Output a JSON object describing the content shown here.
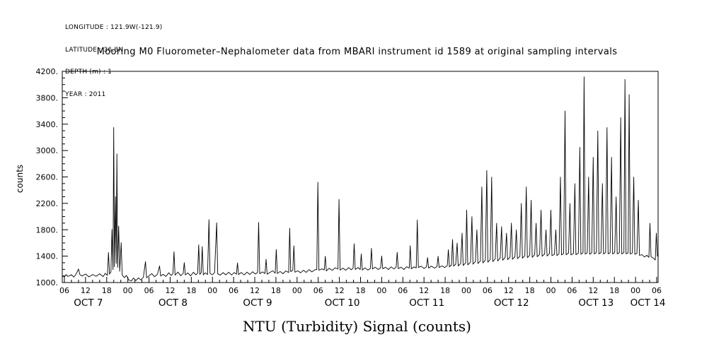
{
  "station": {
    "lines": [
      "LONGITUDE : 121.9W(-121.9)",
      "LATITUDE : 36.8N",
      "DEPTH (m) : 1",
      "YEAR : 2011"
    ]
  },
  "title": "Mooring M0 Fluorometer–Nephalometer data from MBARI instrument id 1589 at original sampling intervals",
  "chart_data": {
    "type": "line",
    "title": "Mooring M0 Fluorometer–Nephalometer data from MBARI instrument id 1589 at original sampling intervals",
    "xlabel": "NTU (Turbidity) Signal (counts)",
    "ylabel": "counts",
    "ylim": [
      1000,
      4200
    ],
    "y_tick_step": 400,
    "y_minor_step": 100,
    "y_ticks": [
      "4200.",
      "3800.",
      "3400.",
      "3000.",
      "2600.",
      "2200.",
      "1800.",
      "1400.",
      "1000."
    ],
    "x_domain": [
      5.4,
      174.4
    ],
    "x_units": "hours since 2011-10-07 00:00",
    "x_tick_hours": [
      6,
      12,
      18,
      24,
      30,
      36,
      42,
      48,
      54,
      60,
      66,
      72,
      78,
      84,
      90,
      96,
      102,
      108,
      114,
      120,
      126,
      132,
      138,
      144,
      150,
      156,
      162,
      168,
      174
    ],
    "x_tick_labels": [
      "06",
      "12",
      "18",
      "00",
      "06",
      "12",
      "18",
      "00",
      "06",
      "12",
      "18",
      "00",
      "06",
      "12",
      "18",
      "00",
      "06",
      "12",
      "18",
      "00",
      "06",
      "12",
      "18",
      "00",
      "06",
      "12",
      "18",
      "00",
      "06"
    ],
    "x_minor_step_hours": 2,
    "date_labels": [
      {
        "label": "OCT 7",
        "hour": 12.8
      },
      {
        "label": "OCT 8",
        "hour": 36.8
      },
      {
        "label": "OCT 9",
        "hour": 60.8
      },
      {
        "label": "OCT 10",
        "hour": 84.8
      },
      {
        "label": "OCT 11",
        "hour": 108.8
      },
      {
        "label": "OCT 12",
        "hour": 132.8
      },
      {
        "label": "OCT 13",
        "hour": 156.8
      },
      {
        "label": "OCT 14",
        "hour": 171.5
      }
    ],
    "grid": false,
    "legend": "none",
    "line_color": "#000000",
    "points": [
      [
        5.5,
        1100
      ],
      [
        6,
        1085
      ],
      [
        6.5,
        1120
      ],
      [
        7,
        1092
      ],
      [
        8,
        1118
      ],
      [
        8.7,
        1082
      ],
      [
        9.4,
        1135
      ],
      [
        10,
        1205
      ],
      [
        10.4,
        1120
      ],
      [
        11,
        1098
      ],
      [
        12,
        1128
      ],
      [
        13,
        1086
      ],
      [
        14,
        1122
      ],
      [
        15,
        1095
      ],
      [
        16,
        1133
      ],
      [
        17,
        1090
      ],
      [
        17.6,
        1140
      ],
      [
        18.2,
        1108
      ],
      [
        18.5,
        1455
      ],
      [
        18.8,
        1128
      ],
      [
        19.2,
        1162
      ],
      [
        19.5,
        1805
      ],
      [
        19.8,
        1195
      ],
      [
        20.0,
        3350
      ],
      [
        20.2,
        1240
      ],
      [
        20.5,
        2300
      ],
      [
        20.7,
        1290
      ],
      [
        20.9,
        2950
      ],
      [
        21.1,
        1230
      ],
      [
        21.4,
        1855
      ],
      [
        21.7,
        1170
      ],
      [
        22.1,
        1605
      ],
      [
        22.4,
        1115
      ],
      [
        23,
        1075
      ],
      [
        23.6,
        1108
      ],
      [
        24.2,
        1042
      ],
      [
        25,
        1022
      ],
      [
        25.6,
        1068
      ],
      [
        26.3,
        1030
      ],
      [
        27,
        1072
      ],
      [
        27.7,
        1038
      ],
      [
        28.4,
        1080
      ],
      [
        29,
        1318
      ],
      [
        29.3,
        1072
      ],
      [
        30,
        1104
      ],
      [
        30.8,
        1135
      ],
      [
        31.6,
        1088
      ],
      [
        32.4,
        1126
      ],
      [
        33,
        1252
      ],
      [
        33.3,
        1098
      ],
      [
        34,
        1124
      ],
      [
        34.8,
        1092
      ],
      [
        35.6,
        1148
      ],
      [
        36.3,
        1106
      ],
      [
        36.8,
        1136
      ],
      [
        37.1,
        1468
      ],
      [
        37.4,
        1112
      ],
      [
        38.2,
        1158
      ],
      [
        39,
        1104
      ],
      [
        39.7,
        1138
      ],
      [
        40,
        1302
      ],
      [
        40.3,
        1116
      ],
      [
        41,
        1146
      ],
      [
        41.8,
        1102
      ],
      [
        42.6,
        1156
      ],
      [
        43.3,
        1118
      ],
      [
        43.8,
        1142
      ],
      [
        44.1,
        1572
      ],
      [
        44.4,
        1124
      ],
      [
        44.8,
        1150
      ],
      [
        45.1,
        1545
      ],
      [
        45.4,
        1118
      ],
      [
        46,
        1148
      ],
      [
        46.6,
        1122
      ],
      [
        47,
        1952
      ],
      [
        47.3,
        1138
      ],
      [
        48,
        1118
      ],
      [
        48.6,
        1152
      ],
      [
        49.2,
        1905
      ],
      [
        49.5,
        1132
      ],
      [
        50.2,
        1112
      ],
      [
        51,
        1150
      ],
      [
        51.8,
        1118
      ],
      [
        52.6,
        1156
      ],
      [
        53.4,
        1114
      ],
      [
        54.2,
        1152
      ],
      [
        54.8,
        1126
      ],
      [
        55.1,
        1298
      ],
      [
        55.4,
        1122
      ],
      [
        56.2,
        1152
      ],
      [
        57,
        1116
      ],
      [
        57.8,
        1158
      ],
      [
        58.6,
        1122
      ],
      [
        59.4,
        1164
      ],
      [
        60.2,
        1128
      ],
      [
        60.8,
        1152
      ],
      [
        61.1,
        1912
      ],
      [
        61.4,
        1134
      ],
      [
        62.2,
        1162
      ],
      [
        62.9,
        1136
      ],
      [
        63.2,
        1352
      ],
      [
        63.5,
        1126
      ],
      [
        64.3,
        1154
      ],
      [
        65.1,
        1178
      ],
      [
        65.8,
        1142
      ],
      [
        66.1,
        1502
      ],
      [
        66.4,
        1136
      ],
      [
        67.2,
        1168
      ],
      [
        68,
        1134
      ],
      [
        68.8,
        1176
      ],
      [
        69.6,
        1152
      ],
      [
        69.9,
        1822
      ],
      [
        70.2,
        1164
      ],
      [
        70.8,
        1188
      ],
      [
        71.1,
        1558
      ],
      [
        71.4,
        1156
      ],
      [
        72.2,
        1178
      ],
      [
        73,
        1148
      ],
      [
        73.8,
        1186
      ],
      [
        74.6,
        1154
      ],
      [
        75.4,
        1196
      ],
      [
        76.2,
        1162
      ],
      [
        77,
        1192
      ],
      [
        77.6,
        1198
      ],
      [
        77.9,
        2520
      ],
      [
        78.2,
        1186
      ],
      [
        79,
        1208
      ],
      [
        79.7,
        1192
      ],
      [
        80,
        1398
      ],
      [
        80.3,
        1176
      ],
      [
        81.1,
        1216
      ],
      [
        82,
        1184
      ],
      [
        82.8,
        1224
      ],
      [
        83.6,
        1204
      ],
      [
        83.9,
        2260
      ],
      [
        84.2,
        1188
      ],
      [
        85,
        1218
      ],
      [
        85.8,
        1186
      ],
      [
        86.6,
        1226
      ],
      [
        87.4,
        1194
      ],
      [
        87.9,
        1222
      ],
      [
        88.2,
        1588
      ],
      [
        88.5,
        1198
      ],
      [
        89.3,
        1228
      ],
      [
        89.9,
        1196
      ],
      [
        90.2,
        1432
      ],
      [
        90.5,
        1190
      ],
      [
        91.3,
        1222
      ],
      [
        92.1,
        1188
      ],
      [
        92.8,
        1214
      ],
      [
        93.1,
        1518
      ],
      [
        93.4,
        1206
      ],
      [
        94.2,
        1232
      ],
      [
        95,
        1198
      ],
      [
        95.7,
        1224
      ],
      [
        96,
        1402
      ],
      [
        96.3,
        1208
      ],
      [
        97.1,
        1232
      ],
      [
        97.9,
        1198
      ],
      [
        98.7,
        1238
      ],
      [
        99.5,
        1206
      ],
      [
        100.1,
        1234
      ],
      [
        100.4,
        1458
      ],
      [
        100.7,
        1212
      ],
      [
        101.5,
        1232
      ],
      [
        102.3,
        1198
      ],
      [
        103.1,
        1240
      ],
      [
        103.8,
        1218
      ],
      [
        104.1,
        1558
      ],
      [
        104.4,
        1208
      ],
      [
        105.2,
        1238
      ],
      [
        105.8,
        1222
      ],
      [
        106.1,
        1948
      ],
      [
        106.4,
        1228
      ],
      [
        107.2,
        1248
      ],
      [
        108,
        1212
      ],
      [
        108.7,
        1240
      ],
      [
        109,
        1378
      ],
      [
        109.3,
        1218
      ],
      [
        110.1,
        1248
      ],
      [
        111,
        1218
      ],
      [
        111.7,
        1242
      ],
      [
        112,
        1398
      ],
      [
        112.3,
        1228
      ],
      [
        113.1,
        1252
      ],
      [
        113.9,
        1228
      ],
      [
        114.6,
        1258
      ],
      [
        114.9,
        1498
      ],
      [
        115.2,
        1238
      ],
      [
        115.8,
        1268
      ],
      [
        116.1,
        1652
      ],
      [
        116.4,
        1248
      ],
      [
        117,
        1278
      ],
      [
        117.4,
        1598
      ],
      [
        117.7,
        1252
      ],
      [
        118.4,
        1288
      ],
      [
        118.8,
        1748
      ],
      [
        119.1,
        1258
      ],
      [
        119.8,
        1298
      ],
      [
        120.1,
        2098
      ],
      [
        120.4,
        1268
      ],
      [
        121.2,
        1308
      ],
      [
        121.6,
        1998
      ],
      [
        121.9,
        1278
      ],
      [
        122.6,
        1318
      ],
      [
        123,
        1798
      ],
      [
        123.3,
        1288
      ],
      [
        124,
        1328
      ],
      [
        124.4,
        2448
      ],
      [
        124.7,
        1298
      ],
      [
        125.4,
        1338
      ],
      [
        125.8,
        2698
      ],
      [
        126.1,
        1308
      ],
      [
        126.8,
        1348
      ],
      [
        127.2,
        2598
      ],
      [
        127.5,
        1318
      ],
      [
        128.2,
        1358
      ],
      [
        128.6,
        1898
      ],
      [
        128.9,
        1328
      ],
      [
        129.6,
        1368
      ],
      [
        130,
        1848
      ],
      [
        130.3,
        1338
      ],
      [
        131,
        1378
      ],
      [
        131.4,
        1748
      ],
      [
        131.7,
        1348
      ],
      [
        132.4,
        1382
      ],
      [
        132.8,
        1902
      ],
      [
        133.1,
        1352
      ],
      [
        133.8,
        1392
      ],
      [
        134.2,
        1798
      ],
      [
        134.5,
        1362
      ],
      [
        135.2,
        1398
      ],
      [
        135.6,
        2198
      ],
      [
        135.9,
        1368
      ],
      [
        136.6,
        1408
      ],
      [
        137,
        2448
      ],
      [
        137.3,
        1378
      ],
      [
        138,
        1412
      ],
      [
        138.4,
        2248
      ],
      [
        138.7,
        1382
      ],
      [
        139.4,
        1422
      ],
      [
        139.8,
        1898
      ],
      [
        140.1,
        1392
      ],
      [
        140.8,
        1428
      ],
      [
        141.2,
        2098
      ],
      [
        141.5,
        1398
      ],
      [
        142.2,
        1432
      ],
      [
        142.6,
        1798
      ],
      [
        142.9,
        1402
      ],
      [
        143.6,
        1438
      ],
      [
        144,
        2098
      ],
      [
        144.3,
        1408
      ],
      [
        145,
        1428
      ],
      [
        145.4,
        1798
      ],
      [
        145.7,
        1408
      ],
      [
        146.3,
        1438
      ],
      [
        146.7,
        2598
      ],
      [
        147,
        1418
      ],
      [
        147.6,
        1442
      ],
      [
        148,
        3598
      ],
      [
        148.3,
        1422
      ],
      [
        149,
        1448
      ],
      [
        149.4,
        2198
      ],
      [
        149.7,
        1418
      ],
      [
        150.4,
        1442
      ],
      [
        150.8,
        2498
      ],
      [
        151.1,
        1422
      ],
      [
        151.8,
        1448
      ],
      [
        152.2,
        3048
      ],
      [
        152.5,
        1428
      ],
      [
        153.1,
        1452
      ],
      [
        153.4,
        4118
      ],
      [
        153.7,
        1432
      ],
      [
        154.3,
        1448
      ],
      [
        154.7,
        2598
      ],
      [
        155,
        1428
      ],
      [
        155.6,
        1452
      ],
      [
        156,
        2898
      ],
      [
        156.3,
        1432
      ],
      [
        156.9,
        1456
      ],
      [
        157.3,
        3298
      ],
      [
        157.6,
        1436
      ],
      [
        158.2,
        1452
      ],
      [
        158.6,
        2498
      ],
      [
        158.9,
        1432
      ],
      [
        159.5,
        1456
      ],
      [
        159.9,
        3348
      ],
      [
        160.2,
        1436
      ],
      [
        160.8,
        1452
      ],
      [
        161.2,
        2898
      ],
      [
        161.5,
        1432
      ],
      [
        162.1,
        1456
      ],
      [
        162.5,
        2298
      ],
      [
        162.8,
        1436
      ],
      [
        163.4,
        1452
      ],
      [
        163.8,
        3498
      ],
      [
        164.1,
        1432
      ],
      [
        164.7,
        1456
      ],
      [
        165,
        4078
      ],
      [
        165.3,
        1436
      ],
      [
        165.9,
        1452
      ],
      [
        166.2,
        3848
      ],
      [
        166.5,
        1432
      ],
      [
        167.1,
        1448
      ],
      [
        167.5,
        2598
      ],
      [
        167.8,
        1428
      ],
      [
        168.4,
        1442
      ],
      [
        168.8,
        2248
      ],
      [
        169.1,
        1412
      ],
      [
        169.8,
        1422
      ],
      [
        170.5,
        1388
      ],
      [
        171.2,
        1412
      ],
      [
        171.8,
        1382
      ],
      [
        172.1,
        1898
      ],
      [
        172.4,
        1392
      ],
      [
        173,
        1372
      ],
      [
        173.6,
        1342
      ],
      [
        173.9,
        1748
      ],
      [
        174.2,
        1398
      ],
      [
        174.3,
        1420
      ]
    ]
  }
}
